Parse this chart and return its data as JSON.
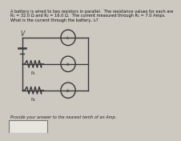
{
  "title_text": "A battery is wired to two resistors in parallel.  The resistance values for each are\nR₁ = 32.0 Ω and R₂ = 16.0 Ω.  The current measured through R₁ = 7.0 Amps.\nWhat is the current through the battery, Iₛ?",
  "answer_prompt": "Provide your answer to the nearest tenth of an Amp.",
  "bg_color": "#cdc8c0",
  "circuit_color": "#3a3a3a",
  "label_Is": "Iₛ",
  "label_I1": "I₁",
  "label_I2": "I₂",
  "label_R1": "R₁",
  "label_R2": "R₂",
  "label_V": "V",
  "box_color": "#b8b4ac"
}
